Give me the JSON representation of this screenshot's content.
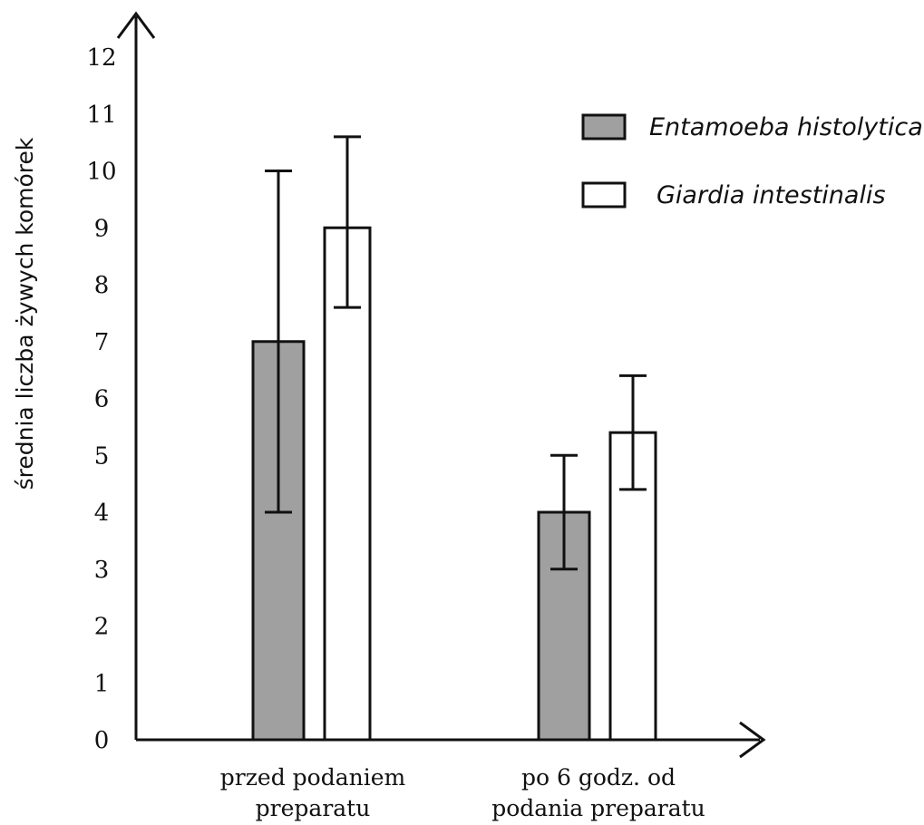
{
  "chart_data": {
    "type": "bar",
    "ylabel": "średnia liczba żywych komórek",
    "xlabel": "",
    "ylim": [
      0,
      12
    ],
    "yticks": [
      "0",
      "1",
      "2",
      "3",
      "4",
      "5",
      "6",
      "7",
      "8",
      "9",
      "10",
      "11",
      "12"
    ],
    "categories": [
      [
        "przed podaniem",
        "preparatu"
      ],
      [
        "po 6 godz. od",
        "podania preparatu"
      ]
    ],
    "series": [
      {
        "name": "Entamoeba histolytica",
        "color": "#a0a0a0",
        "values": [
          7.0,
          4.0
        ],
        "error_low": [
          4.0,
          3.0
        ],
        "error_high": [
          10.0,
          5.0
        ]
      },
      {
        "name": "Giardia intestinalis",
        "color": "#ffffff",
        "values": [
          9.0,
          5.4
        ],
        "error_low": [
          7.6,
          4.4
        ],
        "error_high": [
          10.6,
          6.4
        ]
      }
    ],
    "legend": "top-right",
    "grid": false
  }
}
